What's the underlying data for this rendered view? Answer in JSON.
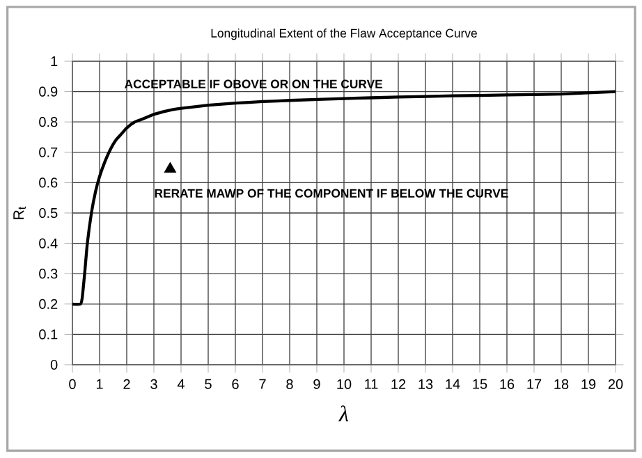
{
  "chart_data": {
    "type": "line",
    "title": "Longitudinal Extent of the Flaw Acceptance Curve",
    "xlabel": "λ",
    "ylabel": "R$_{t}$",
    "annotations": [
      "ACCEPTABLE IF OBOVE OR ON THE CURVE",
      "RERATE MAWP OF THE COMPONENT IF BELOW THE CURVE"
    ],
    "xlim": [
      0,
      20
    ],
    "ylim": [
      0,
      1
    ],
    "xticks": [
      0,
      1,
      2,
      3,
      4,
      5,
      6,
      7,
      8,
      9,
      10,
      11,
      12,
      13,
      14,
      15,
      16,
      17,
      18,
      19,
      20
    ],
    "yticks": [
      0,
      0.1,
      0.2,
      0.3,
      0.4,
      0.5,
      0.6,
      0.7,
      0.8,
      0.9,
      1
    ],
    "grid": true,
    "series": [
      {
        "color": "#000000",
        "marker": "none",
        "x": [
          0,
          0.3,
          0.36,
          0.45,
          0.55,
          0.7,
          0.85,
          1,
          1.2,
          1.4,
          1.6,
          1.8,
          2,
          2.3,
          2.6,
          3,
          3.5,
          4,
          5,
          6,
          7,
          8,
          10,
          12,
          14,
          16,
          18,
          20
        ],
        "values": [
          0.2,
          0.2,
          0.22,
          0.3,
          0.4,
          0.5,
          0.57,
          0.62,
          0.67,
          0.71,
          0.74,
          0.76,
          0.78,
          0.8,
          0.81,
          0.825,
          0.837,
          0.845,
          0.855,
          0.862,
          0.867,
          0.871,
          0.877,
          0.882,
          0.886,
          0.889,
          0.892,
          0.9
        ]
      },
      {
        "type": "scatter",
        "color": "#000000",
        "marker": "triangle",
        "x": [
          3.6
        ],
        "values": [
          0.645
        ]
      }
    ]
  }
}
